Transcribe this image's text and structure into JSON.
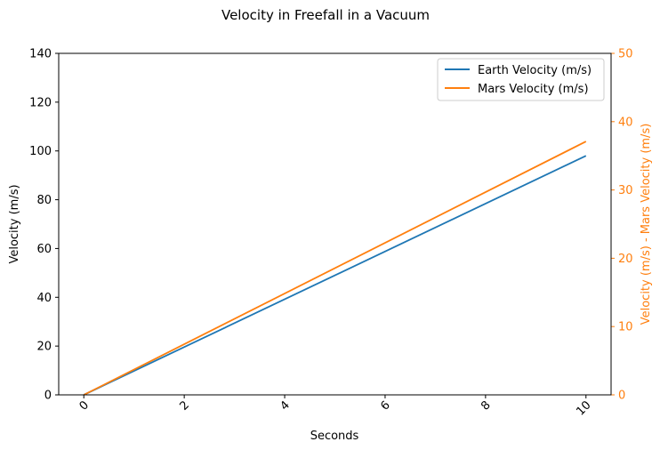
{
  "chart_data": {
    "type": "line",
    "title": "Velocity in Freefall in a Vacuum",
    "xlabel": "Seconds",
    "ylabel": "Velocity (m/s)",
    "y2label": "Velocity (m/s) - Mars Velocity (m/s)",
    "xlim": [
      -0.5,
      10.5
    ],
    "ylim": [
      0,
      140
    ],
    "y2lim": [
      0,
      50
    ],
    "x_ticks": [
      "0",
      "2",
      "4",
      "6",
      "8",
      "10"
    ],
    "x_tick_values": [
      0,
      2,
      4,
      6,
      8,
      10
    ],
    "y_ticks": [
      "0",
      "20",
      "40",
      "60",
      "80",
      "100",
      "120",
      "140"
    ],
    "y_tick_values": [
      0,
      20,
      40,
      60,
      80,
      100,
      120,
      140
    ],
    "y2_ticks": [
      "0",
      "10",
      "20",
      "30",
      "40",
      "50"
    ],
    "y2_tick_values": [
      0,
      10,
      20,
      30,
      40,
      50
    ],
    "legend_position": "top-right",
    "grid": false,
    "series": [
      {
        "name": "Earth Velocity (m/s)",
        "axis": "left",
        "color": "#1f77b4",
        "x": [
          0,
          10
        ],
        "y": [
          0,
          98
        ]
      },
      {
        "name": "Mars Velocity (m/s)",
        "axis": "right",
        "color": "#ff7f0e",
        "x": [
          0,
          10
        ],
        "y": [
          0,
          37.1
        ]
      }
    ],
    "colors": {
      "primary_axis": "#000000",
      "secondary_axis": "#ff7f0e"
    }
  }
}
